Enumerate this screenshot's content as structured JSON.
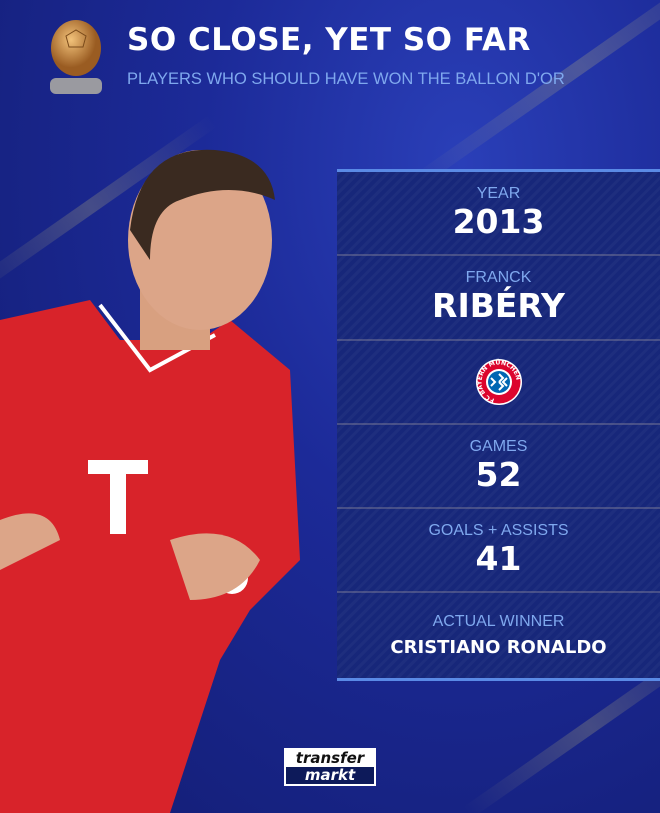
{
  "header": {
    "title": "SO CLOSE, YET SO FAR",
    "subtitle": "PLAYERS WHO SHOULD HAVE WON THE BALLON D'OR",
    "trophy_icon": "ballon-dor-trophy"
  },
  "stats": {
    "year_label": "YEAR",
    "year": "2013",
    "first_name": "FRANCK",
    "last_name": "RIBÉRY",
    "club_badge": "fc-bayern-munchen-badge",
    "club_badge_text": "FC BAYERN MÜNCHEN",
    "games_label": "GAMES",
    "games": "52",
    "ga_label": "GOALS + ASSISTS",
    "ga": "41",
    "winner_label": "ACTUAL WINNER",
    "winner": "CRISTIANO RONALDO"
  },
  "footer": {
    "logo_line1": "transfer",
    "logo_line2": "markt"
  },
  "colors": {
    "background": "#1c2a98",
    "panel": "#17277a",
    "label": "#7fa8ee",
    "accent_line": "#5a8ae6",
    "jersey": "#d8232a"
  }
}
